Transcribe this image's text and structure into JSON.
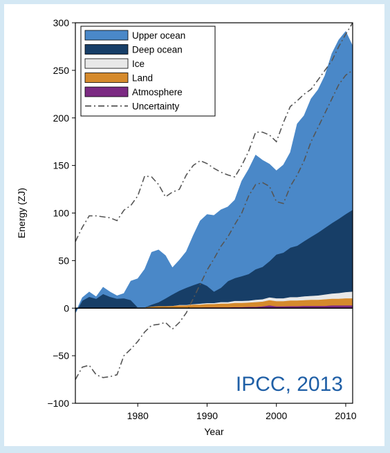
{
  "chart_data": {
    "type": "area",
    "xlabel": "Year",
    "ylabel": "Energy (ZJ)",
    "xlim": [
      1971,
      2011
    ],
    "ylim": [
      -100,
      300
    ],
    "xticks": [
      1980,
      1990,
      2000,
      2010
    ],
    "yticks": [
      -100,
      -50,
      0,
      50,
      100,
      150,
      200,
      250,
      300
    ],
    "grid": false,
    "stacked": true,
    "legend_position": "top-left",
    "annotation": {
      "text": "IPCC, 2013",
      "color": "#1f5fa6"
    },
    "years": [
      1971,
      1972,
      1973,
      1974,
      1975,
      1976,
      1977,
      1978,
      1979,
      1980,
      1981,
      1982,
      1983,
      1984,
      1985,
      1986,
      1987,
      1988,
      1989,
      1990,
      1991,
      1992,
      1993,
      1994,
      1995,
      1996,
      1997,
      1998,
      1999,
      2000,
      2001,
      2002,
      2003,
      2004,
      2005,
      2006,
      2007,
      2008,
      2009,
      2010,
      2011
    ],
    "series": [
      {
        "name": "Atmosphere",
        "color": "#7b2a82",
        "values": [
          0,
          0,
          0,
          0,
          0,
          0,
          0,
          0,
          0,
          0,
          0,
          0.3,
          0.3,
          0.3,
          0.5,
          0.5,
          0.5,
          0.8,
          0.8,
          1,
          1,
          1,
          1,
          1.2,
          1.2,
          1.5,
          1.5,
          2,
          3,
          2,
          2,
          2.2,
          2.2,
          2.5,
          2.5,
          2.5,
          2.5,
          3,
          3,
          3,
          3
        ]
      },
      {
        "name": "Land",
        "color": "#d58a2c",
        "values": [
          0,
          0,
          0,
          0,
          0,
          0,
          0,
          0.5,
          0.5,
          1,
          1,
          1.5,
          2,
          2,
          2,
          2.5,
          2.5,
          3,
          3,
          3.5,
          3.5,
          4,
          4,
          4.5,
          4.5,
          4.5,
          5,
          5,
          5.5,
          5.5,
          5.5,
          6,
          6,
          6,
          6.5,
          6.5,
          7,
          7,
          7,
          7.5,
          7.5
        ]
      },
      {
        "name": "Ice",
        "color": "#e8e8e8",
        "values": [
          0,
          0,
          0,
          0,
          0,
          0,
          0,
          0,
          0,
          0,
          0,
          0,
          0,
          0,
          0,
          0.5,
          0.5,
          0.5,
          1,
          1,
          1,
          1.5,
          1.5,
          2,
          2,
          2,
          2.5,
          2.5,
          3,
          3,
          3,
          3.5,
          3.5,
          4,
          4,
          4.5,
          5,
          5.5,
          6,
          6.5,
          7
        ]
      },
      {
        "name": "Deep ocean",
        "color": "#173e67",
        "values": [
          -5,
          8,
          12,
          10,
          15,
          12,
          10,
          10,
          8,
          0,
          0,
          2,
          4,
          8,
          12,
          15,
          18,
          20,
          22,
          18,
          12,
          15,
          22,
          24,
          26,
          28,
          32,
          34,
          38,
          46,
          48,
          52,
          54,
          58,
          62,
          66,
          70,
          74,
          78,
          82,
          86
        ]
      },
      {
        "name": "Upper ocean",
        "color": "#4a88c8",
        "values": [
          0,
          3,
          5,
          2,
          7,
          5,
          3,
          5,
          20,
          30,
          40,
          55,
          55,
          45,
          28,
          32,
          38,
          52,
          65,
          75,
          80,
          82,
          78,
          82,
          100,
          110,
          120,
          112,
          102,
          88,
          92,
          100,
          128,
          132,
          145,
          150,
          160,
          178,
          188,
          192,
          172
        ]
      }
    ],
    "uncertainty": {
      "name": "Uncertainty",
      "upper": [
        70,
        85,
        97,
        97,
        96,
        95,
        92,
        103,
        108,
        118,
        139,
        138,
        130,
        117,
        122,
        125,
        140,
        150,
        155,
        152,
        147,
        143,
        140,
        138,
        150,
        165,
        185,
        185,
        182,
        175,
        195,
        212,
        218,
        225,
        230,
        240,
        250,
        260,
        275,
        288,
        300
      ],
      "lower": [
        -75,
        -62,
        -60,
        -70,
        -73,
        -72,
        -70,
        -50,
        -43,
        -35,
        -25,
        -18,
        -17,
        -15,
        -22,
        -15,
        -5,
        10,
        25,
        40,
        52,
        65,
        75,
        88,
        100,
        118,
        130,
        132,
        128,
        112,
        110,
        128,
        140,
        155,
        175,
        190,
        205,
        220,
        235,
        245,
        250
      ]
    }
  }
}
